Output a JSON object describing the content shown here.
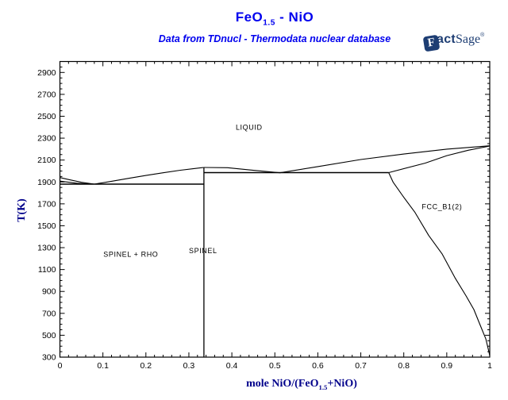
{
  "header": {
    "title_prefix": "FeO",
    "title_subscript": "1.5",
    "title_suffix": " - NiO",
    "subtitle": "Data from TDnucl - Thermodata nuclear database",
    "title_color": "#0000EE"
  },
  "logo": {
    "f": "F",
    "act": "act",
    "sage": "Sage",
    "mark": "®",
    "color": "#1d3d73"
  },
  "chart_data": {
    "type": "line",
    "title": "FeO1.5 - NiO",
    "subtitle": "Data from TDnucl - Thermodata nuclear database",
    "xlabel": "mole NiO/(FeO1.5+NiO)",
    "xlabel_prefix": "mole NiO/(FeO",
    "xlabel_subscript": "1.5",
    "xlabel_suffix": "+NiO)",
    "ylabel": "T(K)",
    "xlim": [
      0,
      1
    ],
    "ylim": [
      300,
      3000
    ],
    "grid": false,
    "legend": "none",
    "line_color": "#000000",
    "x_ticks": {
      "major": [
        0,
        0.1,
        0.2,
        0.3,
        0.4,
        0.5,
        0.6,
        0.7,
        0.8,
        0.9,
        1
      ],
      "labels": [
        "0",
        "0.1",
        "0.2",
        "0.3",
        "0.4",
        "0.5",
        "0.6",
        "0.7",
        "0.8",
        "0.9",
        "1"
      ],
      "minor_step": 0.02
    },
    "y_ticks": {
      "major": [
        300,
        500,
        700,
        900,
        1100,
        1300,
        1500,
        1700,
        1900,
        2100,
        2300,
        2500,
        2700,
        2900
      ],
      "labels": [
        "300",
        "500",
        "700",
        "900",
        "1100",
        "1300",
        "1500",
        "1700",
        "1900",
        "2100",
        "2300",
        "2500",
        "2700",
        "2900"
      ],
      "minor_step": 50
    },
    "series": [
      {
        "name": "liquidus-left",
        "width": 1.1,
        "points": [
          [
            0,
            1940
          ],
          [
            0.02,
            1922
          ],
          [
            0.05,
            1897
          ],
          [
            0.08,
            1880
          ],
          [
            0.12,
            1906
          ],
          [
            0.16,
            1933
          ],
          [
            0.2,
            1959
          ],
          [
            0.24,
            1984
          ],
          [
            0.28,
            2007
          ],
          [
            0.31,
            2021
          ],
          [
            0.335,
            2032
          ]
        ]
      },
      {
        "name": "solidus-left",
        "width": 1.1,
        "points": [
          [
            0,
            1908
          ],
          [
            0.04,
            1888
          ],
          [
            0.08,
            1880
          ]
        ]
      },
      {
        "name": "rho-spinel-isotherm-1880K",
        "width": 1.5,
        "points": [
          [
            0,
            1880
          ],
          [
            0.335,
            1880
          ]
        ]
      },
      {
        "name": "spinel-composition-line",
        "width": 1.3,
        "points": [
          [
            0.335,
            300
          ],
          [
            0.335,
            2032
          ]
        ]
      },
      {
        "name": "liquidus-right",
        "width": 1.1,
        "points": [
          [
            0.335,
            2032
          ],
          [
            0.39,
            2030
          ],
          [
            0.45,
            2006
          ],
          [
            0.512,
            1984
          ],
          [
            0.6,
            2040
          ],
          [
            0.7,
            2105
          ],
          [
            0.8,
            2155
          ],
          [
            0.9,
            2200
          ],
          [
            1,
            2230
          ]
        ]
      },
      {
        "name": "spinel-fcc-isotherm-1985K",
        "width": 1.5,
        "points": [
          [
            0.335,
            1985
          ],
          [
            0.765,
            1985
          ]
        ]
      },
      {
        "name": "solidus-right",
        "width": 1.1,
        "points": [
          [
            0.765,
            1985
          ],
          [
            0.85,
            2072
          ],
          [
            0.9,
            2140
          ],
          [
            0.95,
            2190
          ],
          [
            1,
            2228
          ]
        ]
      },
      {
        "name": "fcc-solvus",
        "width": 1.1,
        "points": [
          [
            0.765,
            1985
          ],
          [
            0.775,
            1899
          ],
          [
            0.8,
            1760
          ],
          [
            0.826,
            1622
          ],
          [
            0.858,
            1411
          ],
          [
            0.889,
            1244
          ],
          [
            0.919,
            1026
          ],
          [
            0.945,
            859
          ],
          [
            0.963,
            735
          ],
          [
            0.978,
            590
          ],
          [
            0.991,
            466
          ],
          [
            0.998,
            350
          ],
          [
            1,
            312
          ]
        ]
      }
    ],
    "region_labels": [
      {
        "text": "LIQUID",
        "x": 0.44,
        "T": 2400
      },
      {
        "text": "SPINEL + RHO",
        "x": 0.165,
        "T": 1240
      },
      {
        "text": "SPINEL",
        "x": 0.333,
        "T": 1272
      },
      {
        "text": "FCC_B1(2)",
        "x": 0.889,
        "T": 1672
      }
    ]
  }
}
